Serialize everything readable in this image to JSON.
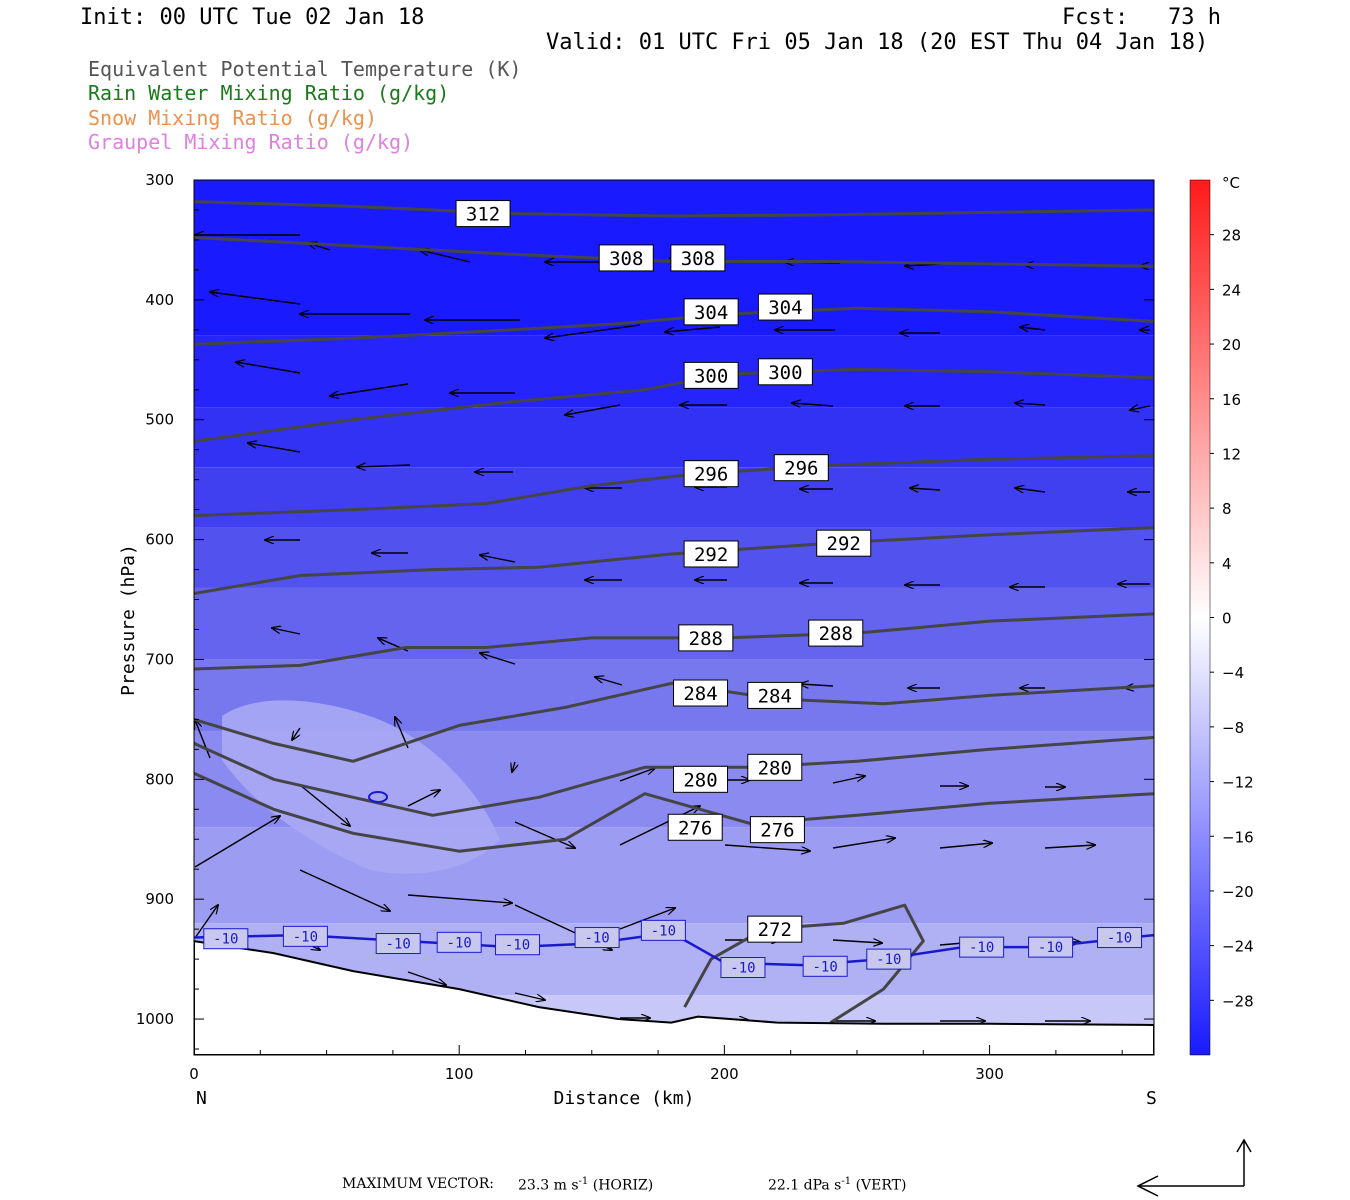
{
  "header": {
    "init": "Init: 00 UTC Tue 02 Jan 18",
    "fcst": "Fcst:   73 h",
    "valid": "Valid: 01 UTC Fri 05 Jan 18 (20 EST Thu 04 Jan 18)"
  },
  "legend": [
    {
      "label": "Equivalent Potential Temperature (K)",
      "color": "#555555"
    },
    {
      "label": "Rain Water Mixing Ratio (g/kg)",
      "color": "#1a7a1a"
    },
    {
      "label": "Snow Mixing Ratio (g/kg)",
      "color": "#f0904a"
    },
    {
      "label": "Graupel Mixing Ratio (g/kg)",
      "color": "#e080e0"
    }
  ],
  "footer": {
    "max_vector_label": "MAXIMUM VECTOR:",
    "horiz_value": "23.3 m s",
    "horiz_exp": "-1",
    "horiz_tag": "(HORIZ)",
    "vert_value": "22.1 dPa s",
    "vert_exp": "-1",
    "vert_tag": "(VERT)"
  },
  "chart_data": {
    "type": "cross-section",
    "xlabel": "Distance (km)",
    "ylabel": "Pressure (hPa)",
    "xlim": [
      0,
      362
    ],
    "ylim": [
      1030,
      300
    ],
    "x_ticks": [
      0,
      100,
      200,
      300
    ],
    "y_ticks": [
      300,
      400,
      500,
      600,
      700,
      800,
      900,
      1000
    ],
    "x_end_labels": {
      "left": "N",
      "right": "S"
    },
    "colorbar": {
      "unit": "°C",
      "labels": [
        28,
        24,
        20,
        16,
        12,
        8,
        4,
        0,
        -4,
        -8,
        -12,
        -16,
        -20,
        -24,
        -28
      ],
      "warm_color": "#ff1a1a",
      "cold_color": "#1a1aff"
    },
    "theta_e_contours": [
      {
        "value": 312,
        "x": [
          0,
          60,
          120,
          180,
          240,
          300,
          362
        ],
        "p": [
          318,
          322,
          328,
          330,
          329,
          327,
          325
        ],
        "label_at": [
          [
            109,
            328
          ]
        ]
      },
      {
        "value": 308,
        "x": [
          0,
          60,
          120,
          180,
          240,
          300,
          362
        ],
        "p": [
          348,
          355,
          362,
          368,
          368,
          370,
          372
        ],
        "label_at": [
          [
            163,
            365
          ],
          [
            190,
            365
          ]
        ]
      },
      {
        "value": 304,
        "x": [
          0,
          60,
          120,
          160,
          200,
          250,
          300,
          362
        ],
        "p": [
          437,
          432,
          425,
          420,
          412,
          407,
          410,
          418
        ],
        "label_at": [
          [
            195,
            410
          ],
          [
            223,
            406
          ]
        ]
      },
      {
        "value": 300,
        "x": [
          0,
          60,
          120,
          170,
          200,
          250,
          300,
          362
        ],
        "p": [
          518,
          500,
          485,
          475,
          462,
          458,
          460,
          465
        ],
        "label_at": [
          [
            195,
            463
          ],
          [
            223,
            460
          ]
        ]
      },
      {
        "value": 296,
        "x": [
          0,
          60,
          110,
          150,
          190,
          240,
          300,
          362
        ],
        "p": [
          580,
          575,
          570,
          555,
          545,
          538,
          533,
          530
        ],
        "label_at": [
          [
            195,
            545
          ],
          [
            229,
            540
          ]
        ]
      },
      {
        "value": 292,
        "x": [
          0,
          40,
          90,
          130,
          180,
          240,
          300,
          362
        ],
        "p": [
          645,
          630,
          625,
          623,
          612,
          603,
          596,
          590
        ],
        "label_at": [
          [
            195,
            612
          ],
          [
            245,
            603
          ]
        ]
      },
      {
        "value": 288,
        "x": [
          0,
          40,
          80,
          110,
          150,
          200,
          250,
          300,
          362
        ],
        "p": [
          708,
          705,
          690,
          690,
          682,
          682,
          678,
          668,
          662
        ],
        "label_at": [
          [
            193,
            682
          ],
          [
            242,
            678
          ]
        ]
      },
      {
        "value": 284,
        "x": [
          0,
          30,
          60,
          100,
          140,
          180,
          220,
          260,
          300,
          362
        ],
        "p": [
          750,
          770,
          785,
          755,
          740,
          720,
          733,
          737,
          730,
          722
        ],
        "label_at": [
          [
            191,
            728
          ],
          [
            219,
            730
          ]
        ]
      },
      {
        "value": 280,
        "x": [
          0,
          30,
          60,
          90,
          130,
          170,
          210,
          250,
          300,
          362
        ],
        "p": [
          770,
          800,
          815,
          830,
          815,
          790,
          790,
          785,
          775,
          765
        ],
        "label_at": [
          [
            191,
            800
          ],
          [
            219,
            790
          ]
        ]
      },
      {
        "value": 276,
        "x": [
          0,
          30,
          60,
          100,
          140,
          170,
          210,
          250,
          300,
          362
        ],
        "p": [
          795,
          825,
          845,
          860,
          850,
          812,
          837,
          830,
          820,
          812
        ],
        "label_at": [
          [
            189,
            840
          ],
          [
            220,
            842
          ]
        ]
      },
      {
        "value": 272,
        "x": [
          185,
          195,
          215,
          245,
          268,
          275,
          260,
          240
        ],
        "p": [
          990,
          950,
          925,
          920,
          905,
          935,
          975,
          1003
        ],
        "label_at": [
          [
            219,
            925
          ]
        ]
      }
    ],
    "isotherm": {
      "value": -10,
      "color": "#1a1acc",
      "x": [
        0,
        40,
        80,
        120,
        150,
        180,
        200,
        230,
        260,
        290,
        320,
        362
      ],
      "p": [
        932,
        930,
        935,
        940,
        937,
        928,
        953,
        955,
        950,
        940,
        940,
        930
      ],
      "label_at": [
        [
          12,
          933
        ],
        [
          42,
          931
        ],
        [
          77,
          937
        ],
        [
          100,
          936
        ],
        [
          122,
          938
        ],
        [
          152,
          932
        ],
        [
          177,
          926
        ],
        [
          207,
          957
        ],
        [
          238,
          956
        ],
        [
          262,
          950
        ],
        [
          297,
          940
        ],
        [
          323,
          940
        ],
        [
          349,
          932
        ]
      ]
    },
    "ground": {
      "x": [
        0,
        30,
        60,
        100,
        130,
        160,
        180,
        190,
        220,
        260,
        300,
        362
      ],
      "p": [
        935,
        945,
        960,
        975,
        990,
        1000,
        1003,
        998,
        1003,
        1004,
        1004,
        1005
      ]
    }
  }
}
